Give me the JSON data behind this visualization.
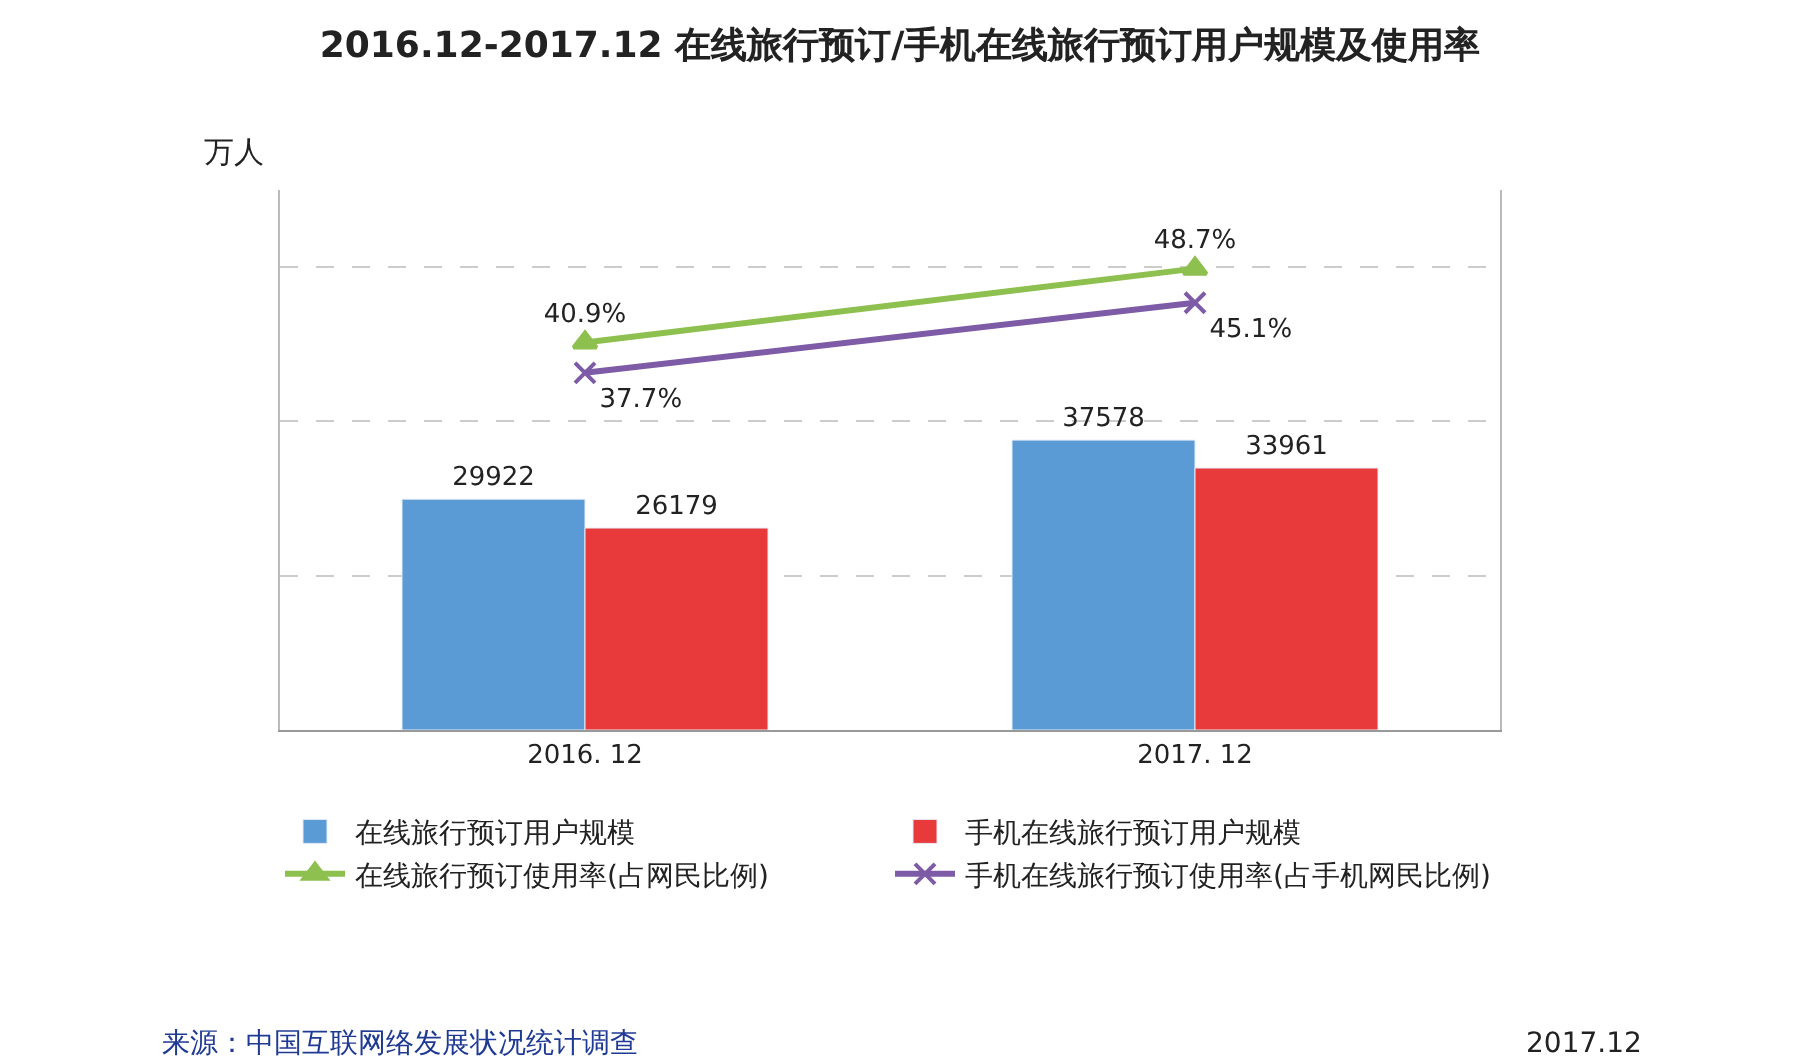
{
  "chart_data": {
    "type": "bar",
    "title": "2016.12-2017.12 在线旅行预订/手机在线旅行预订用户规模及使用率",
    "ylabel": "万人",
    "categories": [
      "2016. 12",
      "2017. 12"
    ],
    "series": [
      {
        "name": "在线旅行预订用户规模",
        "color": "#5b9bd5",
        "values": [
          29922,
          37578
        ]
      },
      {
        "name": "手机在线旅行预订用户规模",
        "color": "#e8393b",
        "values": [
          26179,
          33961
        ]
      },
      {
        "name": "在线旅行预订使用率(占网民比例)",
        "type": "line",
        "axis": "y2",
        "marker": "triangle",
        "color": "#8dc04f",
        "values": [
          40.9,
          48.7
        ],
        "value_labels": [
          "40.9%",
          "48.7%"
        ]
      },
      {
        "name": "手机在线旅行预订使用率(占手机网民比例)",
        "type": "line",
        "axis": "y2",
        "marker": "cross",
        "color": "#7d5ba6",
        "values": [
          37.7,
          45.1
        ],
        "value_labels": [
          "37.7%",
          "45.1%"
        ]
      }
    ],
    "data_labels": true,
    "ylim": [
      0,
      70000
    ],
    "yticks": [
      {
        "value": 20000,
        "label": null
      },
      {
        "value": 40000,
        "label": null
      },
      {
        "value": 60000,
        "label": null
      }
    ],
    "y2lim": [
      0,
      57
    ],
    "grid": "y",
    "legend": "bottom",
    "tick_labels": "x",
    "annotations": [
      "来源：中国互联网络发展状况统计调查",
      "2017.12"
    ]
  }
}
